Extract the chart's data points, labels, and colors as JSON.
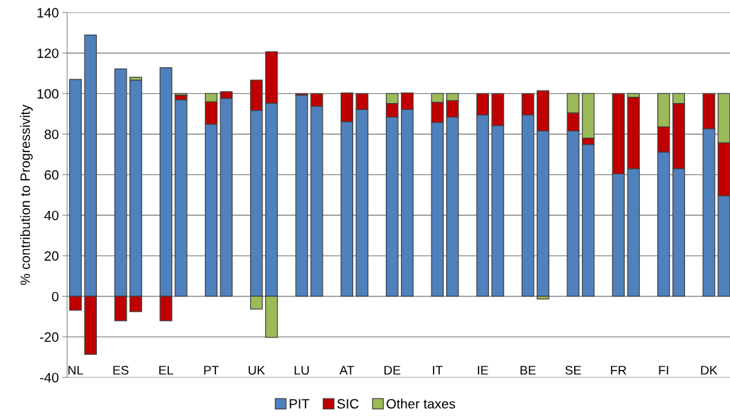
{
  "chart_data": {
    "type": "bar",
    "stacked": true,
    "ylabel": "% contribution to Progressivity",
    "categories": [
      "NL",
      null,
      null,
      "ES",
      null,
      null,
      "EL",
      null,
      null,
      "PT",
      null,
      null,
      "UK",
      null,
      null,
      "LU",
      null,
      null,
      "AT",
      null,
      null,
      "DE",
      null,
      null,
      "IT",
      null,
      null,
      "IE",
      null,
      null,
      "BE",
      null,
      null,
      "SE",
      null,
      null,
      "FR",
      null,
      null,
      "FI",
      null,
      null,
      "DK",
      null
    ],
    "series": [
      {
        "name": "PIT",
        "color": "#4f81bd",
        "values": [
          107,
          128.9,
          null,
          112.2,
          106.6,
          null,
          112.8,
          96.9,
          null,
          84.9,
          97.7,
          null,
          91.7,
          95.3,
          null,
          99.2,
          93.8,
          null,
          86.2,
          92.1,
          null,
          88.4,
          92.1,
          null,
          85.8,
          88.4,
          null,
          89.5,
          84.2,
          null,
          89.5,
          81.6,
          null,
          81.6,
          74.9,
          null,
          60.4,
          63,
          null,
          71.2,
          63,
          null,
          82.7,
          49.6
        ]
      },
      {
        "name": "SIC",
        "color": "#c00000",
        "values": [
          -6.9,
          -28.6,
          null,
          -12.1,
          -7.6,
          null,
          -12.1,
          2.3,
          null,
          11.1,
          3.2,
          null,
          14.9,
          25.3,
          null,
          0.8,
          6.2,
          null,
          14.1,
          7.9,
          null,
          6.7,
          8.2,
          null,
          9.9,
          8.2,
          null,
          10.5,
          15.8,
          null,
          10.5,
          19.8,
          null,
          8.9,
          3.2,
          null,
          39.6,
          35.2,
          null,
          12.4,
          32.1,
          null,
          17.3,
          26.2
        ]
      },
      {
        "name": "Other taxes",
        "color": "#9bbb59",
        "values": [
          null,
          null,
          null,
          null,
          1.5,
          null,
          null,
          0.8,
          null,
          4,
          null,
          null,
          -6.3,
          -20.3,
          null,
          null,
          null,
          null,
          null,
          null,
          null,
          4.9,
          null,
          null,
          4.3,
          3.4,
          null,
          null,
          null,
          null,
          null,
          -1.3,
          null,
          9.5,
          21.9,
          null,
          null,
          1.8,
          null,
          16.4,
          4.9,
          null,
          null,
          24.2
        ]
      }
    ],
    "ylim": [
      -40,
      140
    ],
    "yticks": [
      -40,
      -20,
      0,
      20,
      40,
      60,
      80,
      100,
      120,
      140
    ],
    "grid": "y",
    "legend": "bottom"
  }
}
